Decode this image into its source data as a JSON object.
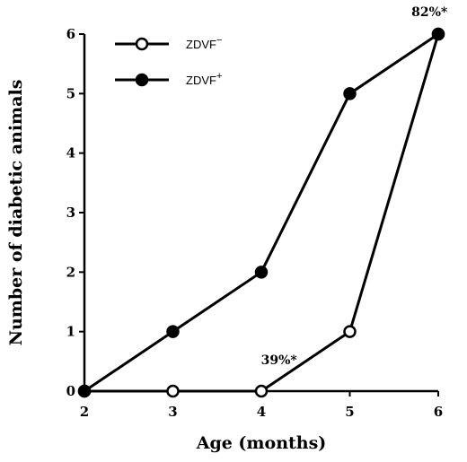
{
  "chart_data": {
    "type": "line",
    "xlabel": "Age (months)",
    "ylabel": "Number of diabetic animals",
    "x": [
      2,
      3,
      4,
      5,
      6
    ],
    "xlim": [
      2,
      6
    ],
    "ylim": [
      0,
      6
    ],
    "xticks": [
      "2",
      "3",
      "4",
      "5",
      "6"
    ],
    "yticks": [
      "0",
      "1",
      "2",
      "3",
      "4",
      "5",
      "6"
    ],
    "grid": false,
    "legend_position": "top-left",
    "series": [
      {
        "name": "ZDVF",
        "name_sup": "−",
        "marker": "open-circle",
        "color": "#000000",
        "values": [
          0,
          0,
          0,
          1,
          6
        ]
      },
      {
        "name": "ZDVF",
        "name_sup": "+",
        "marker": "filled-circle",
        "color": "#000000",
        "values": [
          0,
          1,
          2,
          5,
          6
        ]
      }
    ],
    "annotations": [
      {
        "text": "39%*",
        "x": 4.2,
        "y": 0.45
      },
      {
        "text": "82%*",
        "x": 5.9,
        "y": 6.3
      }
    ]
  }
}
